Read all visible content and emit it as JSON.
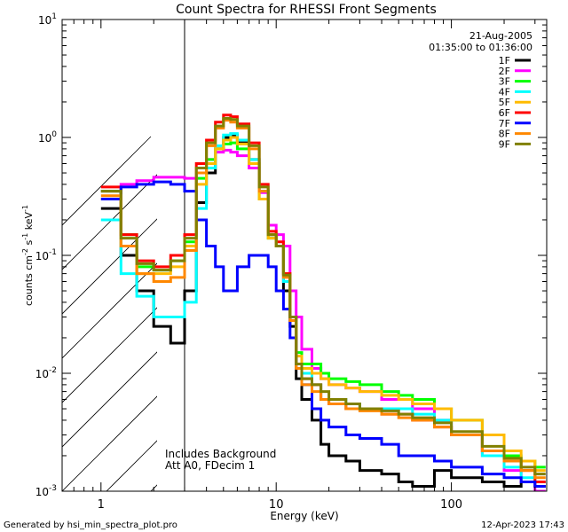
{
  "chart_data": {
    "type": "line",
    "title": "Count Spectra for RHESSI Front Segments",
    "xlabel": "Energy (keV)",
    "ylabel_parts": [
      "counts cm",
      "-2",
      " s",
      "-1",
      " keV",
      "-1"
    ],
    "xscale": "log",
    "yscale": "log",
    "xlim": [
      0.6,
      350
    ],
    "ylim": [
      0.001,
      10
    ],
    "x_ticks": [
      {
        "value": 1,
        "label": "1"
      },
      {
        "value": 10,
        "label": "10"
      },
      {
        "value": 100,
        "label": "100"
      }
    ],
    "y_ticks": [
      {
        "value": 10,
        "base": "10",
        "exp": "1"
      },
      {
        "value": 1,
        "base": "10",
        "exp": "0"
      },
      {
        "value": 0.1,
        "base": "10",
        "exp": "-1"
      },
      {
        "value": 0.01,
        "base": "10",
        "exp": "-2"
      },
      {
        "value": 0.001,
        "base": "10",
        "exp": "-3"
      }
    ],
    "date": "21-Aug-2005",
    "time_range": "01:35:00 to 01:36:00",
    "hatched_region": {
      "x_from": 0.6,
      "x_to": 3.0
    },
    "annotations": [
      "Includes Background",
      "Att A0, FDecim 1"
    ],
    "footer_left": "Generated by hsi_min_spectra_plot.pro",
    "footer_right": "12-Apr-2023 17:43",
    "series": [
      {
        "name": "1F",
        "color": "#000000",
        "x": [
          1,
          1.3,
          1.6,
          2,
          2.5,
          3,
          3.5,
          4,
          4.5,
          5,
          5.5,
          6,
          7,
          8,
          9,
          10,
          11,
          12,
          13,
          14,
          16,
          18,
          20,
          25,
          30,
          40,
          50,
          60,
          80,
          100,
          150,
          200,
          250,
          300
        ],
        "y": [
          0.25,
          0.1,
          0.05,
          0.025,
          0.018,
          0.05,
          0.28,
          0.5,
          0.8,
          1.0,
          1.05,
          0.9,
          0.65,
          0.35,
          0.15,
          0.12,
          0.05,
          0.025,
          0.009,
          0.006,
          0.004,
          0.0025,
          0.002,
          0.0018,
          0.0015,
          0.0014,
          0.0012,
          0.0011,
          0.0015,
          0.0013,
          0.0012,
          0.0011,
          0.0012,
          0.0011
        ]
      },
      {
        "name": "2F",
        "color": "#ff00ff",
        "x": [
          1,
          1.3,
          1.6,
          2,
          2.5,
          3,
          3.5,
          4,
          4.5,
          5,
          5.5,
          6,
          7,
          8,
          9,
          10,
          11,
          12,
          13,
          14,
          16,
          18,
          20,
          25,
          30,
          40,
          50,
          60,
          80,
          100,
          150,
          200,
          250,
          300
        ],
        "y": [
          0.35,
          0.4,
          0.43,
          0.46,
          0.46,
          0.45,
          0.5,
          0.65,
          0.75,
          0.78,
          0.75,
          0.7,
          0.55,
          0.34,
          0.18,
          0.15,
          0.12,
          0.05,
          0.03,
          0.016,
          0.011,
          0.009,
          0.008,
          0.0075,
          0.007,
          0.006,
          0.006,
          0.005,
          0.004,
          0.003,
          0.002,
          0.0015,
          0.0012,
          0.001
        ]
      },
      {
        "name": "3F",
        "color": "#00ff00",
        "x": [
          1,
          1.3,
          1.6,
          2,
          2.5,
          3,
          3.5,
          4,
          4.5,
          5,
          5.5,
          6,
          7,
          8,
          9,
          10,
          11,
          12,
          13,
          14,
          16,
          18,
          20,
          25,
          30,
          40,
          50,
          60,
          80,
          100,
          150,
          200,
          250,
          300
        ],
        "y": [
          0.35,
          0.15,
          0.08,
          0.075,
          0.09,
          0.13,
          0.45,
          0.65,
          0.8,
          0.88,
          0.9,
          0.8,
          0.6,
          0.3,
          0.14,
          0.12,
          0.07,
          0.03,
          0.015,
          0.012,
          0.012,
          0.01,
          0.009,
          0.0085,
          0.008,
          0.007,
          0.0065,
          0.006,
          0.005,
          0.004,
          0.003,
          0.002,
          0.0018,
          0.0016
        ]
      },
      {
        "name": "4F",
        "color": "#00ffff",
        "x": [
          1,
          1.3,
          1.6,
          2,
          2.5,
          3,
          3.5,
          4,
          4.5,
          5,
          5.5,
          6,
          7,
          8,
          9,
          10,
          11,
          12,
          13,
          14,
          16,
          18,
          20,
          25,
          30,
          40,
          50,
          60,
          80,
          100,
          150,
          200,
          250,
          300
        ],
        "y": [
          0.2,
          0.07,
          0.045,
          0.03,
          0.03,
          0.04,
          0.25,
          0.55,
          0.85,
          1.05,
          1.08,
          0.95,
          0.65,
          0.35,
          0.15,
          0.12,
          0.06,
          0.03,
          0.012,
          0.01,
          0.008,
          0.006,
          0.006,
          0.0055,
          0.005,
          0.005,
          0.005,
          0.0045,
          0.004,
          0.003,
          0.002,
          0.0016,
          0.0013,
          0.0012
        ]
      },
      {
        "name": "5F",
        "color": "#ffbb00",
        "x": [
          1,
          1.3,
          1.6,
          2,
          2.5,
          3,
          3.5,
          4,
          4.5,
          5,
          5.5,
          6,
          7,
          8,
          9,
          10,
          11,
          12,
          13,
          14,
          16,
          18,
          20,
          25,
          30,
          40,
          50,
          60,
          80,
          100,
          150,
          200,
          250,
          300
        ],
        "y": [
          0.3,
          0.12,
          0.07,
          0.07,
          0.08,
          0.12,
          0.4,
          0.6,
          0.8,
          0.95,
          1.0,
          0.88,
          0.6,
          0.3,
          0.14,
          0.12,
          0.07,
          0.03,
          0.014,
          0.011,
          0.01,
          0.009,
          0.008,
          0.0075,
          0.007,
          0.0065,
          0.006,
          0.0055,
          0.005,
          0.004,
          0.003,
          0.0022,
          0.0018,
          0.0015
        ]
      },
      {
        "name": "6F",
        "color": "#ff0000",
        "x": [
          1,
          1.3,
          1.6,
          2,
          2.5,
          3,
          3.5,
          4,
          4.5,
          5,
          5.5,
          6,
          7,
          8,
          9,
          10,
          11,
          12,
          13,
          14,
          16,
          18,
          20,
          25,
          30,
          40,
          50,
          60,
          80,
          100,
          150,
          200,
          250,
          300
        ],
        "y": [
          0.38,
          0.15,
          0.09,
          0.08,
          0.1,
          0.15,
          0.6,
          0.95,
          1.35,
          1.55,
          1.5,
          1.3,
          0.9,
          0.4,
          0.16,
          0.13,
          0.07,
          0.03,
          0.012,
          0.009,
          0.008,
          0.006,
          0.0055,
          0.005,
          0.005,
          0.0045,
          0.0045,
          0.004,
          0.0035,
          0.003,
          0.0022,
          0.0018,
          0.0015,
          0.0012
        ]
      },
      {
        "name": "7F",
        "color": "#0000ff",
        "x": [
          1,
          1.3,
          1.6,
          2,
          2.5,
          3,
          3.5,
          4,
          4.5,
          5,
          5.5,
          6,
          7,
          8,
          9,
          10,
          11,
          12,
          13,
          14,
          16,
          18,
          20,
          25,
          30,
          40,
          50,
          60,
          80,
          100,
          150,
          200,
          250,
          300
        ],
        "y": [
          0.3,
          0.38,
          0.4,
          0.42,
          0.4,
          0.35,
          0.2,
          0.12,
          0.08,
          0.05,
          0.05,
          0.08,
          0.1,
          0.1,
          0.08,
          0.05,
          0.035,
          0.02,
          0.012,
          0.008,
          0.005,
          0.004,
          0.0035,
          0.003,
          0.0028,
          0.0025,
          0.002,
          0.002,
          0.0018,
          0.0016,
          0.0014,
          0.0013,
          0.0012,
          0.0011
        ]
      },
      {
        "name": "8F",
        "color": "#ff8800",
        "x": [
          1,
          1.3,
          1.6,
          2,
          2.5,
          3,
          3.5,
          4,
          4.5,
          5,
          5.5,
          6,
          7,
          8,
          9,
          10,
          11,
          12,
          13,
          14,
          16,
          18,
          20,
          25,
          30,
          40,
          50,
          60,
          80,
          100,
          150,
          200,
          250,
          300
        ],
        "y": [
          0.32,
          0.12,
          0.07,
          0.06,
          0.065,
          0.11,
          0.5,
          0.85,
          1.2,
          1.4,
          1.35,
          1.2,
          0.8,
          0.35,
          0.15,
          0.12,
          0.065,
          0.028,
          0.011,
          0.008,
          0.007,
          0.006,
          0.0055,
          0.005,
          0.0048,
          0.0045,
          0.0042,
          0.004,
          0.0035,
          0.003,
          0.0022,
          0.0018,
          0.0015,
          0.0013
        ]
      },
      {
        "name": "9F",
        "color": "#808000",
        "x": [
          1,
          1.3,
          1.6,
          2,
          2.5,
          3,
          3.5,
          4,
          4.5,
          5,
          5.5,
          6,
          7,
          8,
          9,
          10,
          11,
          12,
          13,
          14,
          16,
          18,
          20,
          25,
          30,
          40,
          50,
          60,
          80,
          100,
          150,
          200,
          250,
          300
        ],
        "y": [
          0.35,
          0.14,
          0.085,
          0.075,
          0.09,
          0.14,
          0.55,
          0.9,
          1.25,
          1.45,
          1.42,
          1.25,
          0.85,
          0.38,
          0.15,
          0.12,
          0.068,
          0.03,
          0.012,
          0.009,
          0.008,
          0.007,
          0.006,
          0.0055,
          0.005,
          0.0048,
          0.0045,
          0.0042,
          0.0038,
          0.0032,
          0.0024,
          0.0019,
          0.0016,
          0.0014
        ]
      }
    ]
  }
}
